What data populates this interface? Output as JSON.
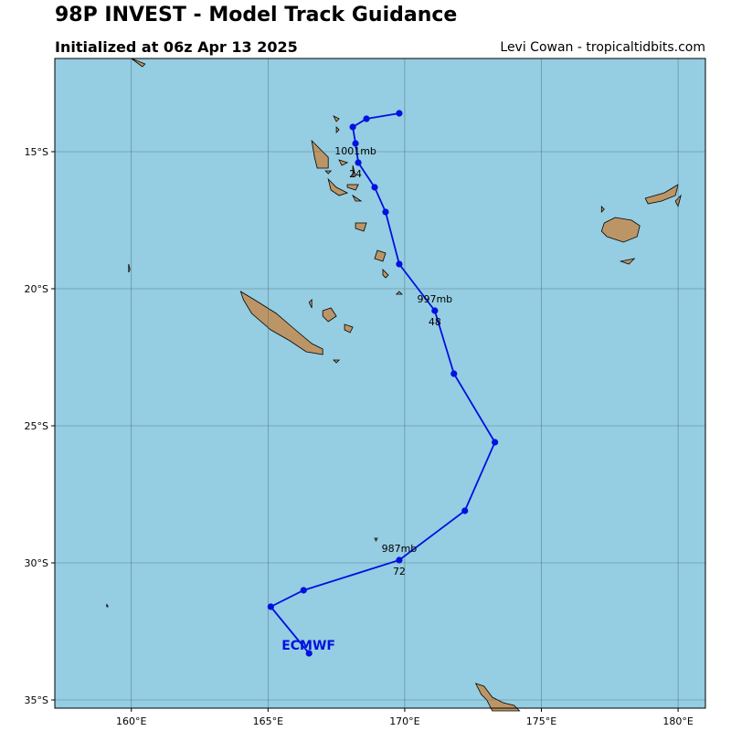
{
  "header": {
    "title": "98P INVEST - Model Track Guidance",
    "subtitle": "Initialized at 06z Apr 13 2025",
    "credit": "Levi Cowan - tropicaltidbits.com"
  },
  "colors": {
    "ocean": "#95cde2",
    "land": "#bc9567",
    "track": "#0010e0",
    "grid": "#4a6e7a"
  },
  "map": {
    "lon_range": [
      157.2,
      181.0
    ],
    "lat_range": [
      -35.3,
      -11.6
    ],
    "lon_ticks": [
      {
        "value": 160,
        "label": "160°E"
      },
      {
        "value": 165,
        "label": "165°E"
      },
      {
        "value": 170,
        "label": "170°E"
      },
      {
        "value": 175,
        "label": "175°E"
      },
      {
        "value": 180,
        "label": "180°E"
      }
    ],
    "lat_ticks": [
      {
        "value": -15,
        "label": "15°S"
      },
      {
        "value": -20,
        "label": "20°S"
      },
      {
        "value": -25,
        "label": "25°S"
      },
      {
        "value": -30,
        "label": "30°S"
      },
      {
        "value": -35,
        "label": "35°S"
      }
    ],
    "grid": true
  },
  "track": {
    "model": "ECMWF",
    "label_pos": [
      166.5,
      -33.0
    ],
    "points": [
      {
        "lon": 169.8,
        "lat": -13.6
      },
      {
        "lon": 168.6,
        "lat": -13.8
      },
      {
        "lon": 168.1,
        "lat": -14.1
      },
      {
        "lon": 168.2,
        "lat": -14.7
      },
      {
        "lon": 168.3,
        "lat": -15.4
      },
      {
        "lon": 168.9,
        "lat": -16.3
      },
      {
        "lon": 169.3,
        "lat": -17.2
      },
      {
        "lon": 169.8,
        "lat": -19.1
      },
      {
        "lon": 171.1,
        "lat": -20.8
      },
      {
        "lon": 171.8,
        "lat": -23.1
      },
      {
        "lon": 173.3,
        "lat": -25.6
      },
      {
        "lon": 172.2,
        "lat": -28.1
      },
      {
        "lon": 169.8,
        "lat": -29.9
      },
      {
        "lon": 166.3,
        "lat": -31.0
      },
      {
        "lon": 165.1,
        "lat": -31.6
      },
      {
        "lon": 166.5,
        "lat": -33.3
      }
    ],
    "annotations": [
      {
        "lon": 168.2,
        "lat": -15.0,
        "pressure": "1001mb",
        "hour": "24"
      },
      {
        "lon": 171.1,
        "lat": -20.4,
        "pressure": "997mb",
        "hour": "48"
      },
      {
        "lon": 169.8,
        "lat": -29.5,
        "pressure": "987mb",
        "hour": "72"
      }
    ]
  },
  "land": [
    {
      "name": "new-caledonia",
      "coords": [
        [
          164.0,
          -20.1
        ],
        [
          164.5,
          -20.4
        ],
        [
          165.3,
          -20.9
        ],
        [
          166.0,
          -21.5
        ],
        [
          166.6,
          -22.0
        ],
        [
          167.0,
          -22.2
        ],
        [
          167.0,
          -22.4
        ],
        [
          166.4,
          -22.3
        ],
        [
          165.8,
          -21.9
        ],
        [
          165.1,
          -21.5
        ],
        [
          164.4,
          -20.9
        ],
        [
          164.1,
          -20.4
        ]
      ]
    },
    {
      "name": "isle-of-pines",
      "coords": [
        [
          167.4,
          -22.6
        ],
        [
          167.6,
          -22.6
        ],
        [
          167.5,
          -22.7
        ]
      ]
    },
    {
      "name": "ouvea",
      "coords": [
        [
          166.5,
          -20.5
        ],
        [
          166.6,
          -20.4
        ],
        [
          166.6,
          -20.7
        ]
      ]
    },
    {
      "name": "lifou",
      "coords": [
        [
          167.0,
          -20.8
        ],
        [
          167.3,
          -20.7
        ],
        [
          167.5,
          -21.0
        ],
        [
          167.2,
          -21.2
        ],
        [
          167.0,
          -21.0
        ]
      ]
    },
    {
      "name": "mare",
      "coords": [
        [
          167.8,
          -21.3
        ],
        [
          168.1,
          -21.4
        ],
        [
          168.0,
          -21.6
        ],
        [
          167.8,
          -21.5
        ]
      ]
    },
    {
      "name": "espiritu-santo",
      "coords": [
        [
          166.6,
          -14.6
        ],
        [
          166.9,
          -14.9
        ],
        [
          167.2,
          -15.2
        ],
        [
          167.2,
          -15.6
        ],
        [
          166.8,
          -15.6
        ],
        [
          166.7,
          -15.2
        ]
      ]
    },
    {
      "name": "malo",
      "coords": [
        [
          167.1,
          -15.7
        ],
        [
          167.3,
          -15.7
        ],
        [
          167.2,
          -15.8
        ]
      ]
    },
    {
      "name": "malekula",
      "coords": [
        [
          167.2,
          -16.0
        ],
        [
          167.5,
          -16.3
        ],
        [
          167.9,
          -16.5
        ],
        [
          167.6,
          -16.6
        ],
        [
          167.3,
          -16.4
        ]
      ]
    },
    {
      "name": "ambae",
      "coords": [
        [
          167.6,
          -15.3
        ],
        [
          167.9,
          -15.4
        ],
        [
          167.7,
          -15.5
        ]
      ]
    },
    {
      "name": "pentecost",
      "coords": [
        [
          168.1,
          -15.5
        ],
        [
          168.2,
          -15.9
        ],
        [
          168.1,
          -15.9
        ]
      ]
    },
    {
      "name": "ambrym",
      "coords": [
        [
          167.9,
          -16.2
        ],
        [
          168.3,
          -16.2
        ],
        [
          168.2,
          -16.4
        ],
        [
          167.9,
          -16.3
        ]
      ]
    },
    {
      "name": "epi",
      "coords": [
        [
          168.1,
          -16.6
        ],
        [
          168.4,
          -16.8
        ],
        [
          168.2,
          -16.8
        ]
      ]
    },
    {
      "name": "efate",
      "coords": [
        [
          168.2,
          -17.6
        ],
        [
          168.6,
          -17.6
        ],
        [
          168.5,
          -17.9
        ],
        [
          168.2,
          -17.8
        ]
      ]
    },
    {
      "name": "erromango",
      "coords": [
        [
          169.0,
          -18.6
        ],
        [
          169.3,
          -18.7
        ],
        [
          169.2,
          -19.0
        ],
        [
          168.9,
          -18.9
        ]
      ]
    },
    {
      "name": "tanna",
      "coords": [
        [
          169.2,
          -19.3
        ],
        [
          169.4,
          -19.5
        ],
        [
          169.3,
          -19.6
        ],
        [
          169.2,
          -19.5
        ]
      ]
    },
    {
      "name": "aneityum",
      "coords": [
        [
          169.8,
          -20.1
        ],
        [
          169.9,
          -20.2
        ],
        [
          169.7,
          -20.2
        ]
      ]
    },
    {
      "name": "gaua",
      "coords": [
        [
          167.5,
          -14.1
        ],
        [
          167.6,
          -14.2
        ],
        [
          167.5,
          -14.3
        ]
      ]
    },
    {
      "name": "vanua-lava",
      "coords": [
        [
          167.4,
          -13.7
        ],
        [
          167.6,
          -13.8
        ],
        [
          167.5,
          -13.9
        ]
      ]
    },
    {
      "name": "solomons-tip",
      "coords": [
        [
          160.0,
          -11.6
        ],
        [
          160.5,
          -11.8
        ],
        [
          160.4,
          -11.9
        ]
      ]
    },
    {
      "name": "rennell",
      "coords": [
        [
          159.9,
          -19.1
        ],
        [
          159.95,
          -19.3
        ],
        [
          159.9,
          -19.4
        ]
      ]
    },
    {
      "name": "viti-levu",
      "coords": [
        [
          177.3,
          -17.6
        ],
        [
          177.7,
          -17.4
        ],
        [
          178.3,
          -17.5
        ],
        [
          178.6,
          -17.7
        ],
        [
          178.5,
          -18.1
        ],
        [
          178.0,
          -18.3
        ],
        [
          177.4,
          -18.1
        ],
        [
          177.2,
          -17.9
        ]
      ]
    },
    {
      "name": "vanua-levu",
      "coords": [
        [
          178.8,
          -16.7
        ],
        [
          179.5,
          -16.5
        ],
        [
          180.0,
          -16.2
        ],
        [
          179.9,
          -16.6
        ],
        [
          179.4,
          -16.8
        ],
        [
          178.9,
          -16.9
        ]
      ]
    },
    {
      "name": "taveuni",
      "coords": [
        [
          179.9,
          -16.8
        ],
        [
          180.1,
          -16.6
        ],
        [
          180.0,
          -17.0
        ]
      ]
    },
    {
      "name": "kadavu",
      "coords": [
        [
          177.9,
          -19.0
        ],
        [
          178.4,
          -18.9
        ],
        [
          178.2,
          -19.1
        ]
      ]
    },
    {
      "name": "yasawa",
      "coords": [
        [
          177.2,
          -17.0
        ],
        [
          177.3,
          -17.1
        ],
        [
          177.2,
          -17.2
        ]
      ]
    },
    {
      "name": "north-island-tip",
      "coords": [
        [
          172.6,
          -34.4
        ],
        [
          172.9,
          -34.5
        ],
        [
          173.2,
          -34.9
        ],
        [
          173.6,
          -35.1
        ],
        [
          174.0,
          -35.2
        ],
        [
          174.2,
          -35.4
        ],
        [
          173.2,
          -35.4
        ],
        [
          173.0,
          -35.0
        ],
        [
          172.8,
          -34.8
        ]
      ]
    },
    {
      "name": "lord-howe",
      "coords": [
        [
          159.1,
          -31.5
        ],
        [
          159.15,
          -31.6
        ],
        [
          159.1,
          -31.6
        ]
      ]
    },
    {
      "name": "walpole",
      "coords": [
        [
          168.9,
          -29.1
        ],
        [
          169.0,
          -29.1
        ],
        [
          168.95,
          -29.2
        ]
      ]
    }
  ]
}
